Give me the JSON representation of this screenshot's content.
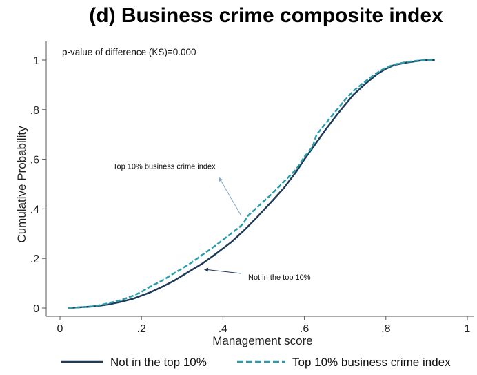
{
  "chart_data": {
    "type": "line",
    "title": "(d) Business crime composite index",
    "xlabel": "Management score",
    "ylabel": "Cumulative Probability",
    "xlim": [
      0,
      1
    ],
    "ylim": [
      0,
      1
    ],
    "xticks": [
      0,
      0.2,
      0.4,
      0.6,
      0.8,
      1
    ],
    "xtick_labels": [
      "0",
      ".2",
      ".4",
      ".6",
      ".8",
      "1"
    ],
    "yticks": [
      0,
      0.2,
      0.4,
      0.6,
      0.8,
      1
    ],
    "ytick_labels": [
      "0",
      ".2",
      ".4",
      ".6",
      ".8",
      "1"
    ],
    "grid": false,
    "legend_position": "bottom",
    "annotation_text": "p-value of difference (KS)=0.000",
    "series": [
      {
        "name": "Not in the top 10%",
        "color": "#1f3b57",
        "style": "solid",
        "x": [
          0.02,
          0.05,
          0.08,
          0.1,
          0.12,
          0.15,
          0.18,
          0.2,
          0.22,
          0.25,
          0.28,
          0.3,
          0.32,
          0.35,
          0.38,
          0.4,
          0.42,
          0.45,
          0.48,
          0.5,
          0.52,
          0.55,
          0.58,
          0.6,
          0.62,
          0.65,
          0.68,
          0.7,
          0.72,
          0.75,
          0.78,
          0.8,
          0.82,
          0.85,
          0.88,
          0.9,
          0.92
        ],
        "y": [
          0.0,
          0.003,
          0.006,
          0.01,
          0.015,
          0.025,
          0.038,
          0.05,
          0.062,
          0.085,
          0.11,
          0.13,
          0.15,
          0.18,
          0.215,
          0.24,
          0.265,
          0.31,
          0.36,
          0.395,
          0.43,
          0.485,
          0.55,
          0.6,
          0.645,
          0.715,
          0.78,
          0.82,
          0.86,
          0.905,
          0.945,
          0.965,
          0.98,
          0.99,
          0.997,
          1.0,
          1.0
        ]
      },
      {
        "name": "Top 10% business crime index",
        "color": "#2a9dab",
        "style": "dashed",
        "x": [
          0.02,
          0.05,
          0.08,
          0.1,
          0.12,
          0.15,
          0.18,
          0.2,
          0.22,
          0.25,
          0.28,
          0.3,
          0.32,
          0.35,
          0.38,
          0.4,
          0.42,
          0.44,
          0.45,
          0.46,
          0.48,
          0.5,
          0.52,
          0.55,
          0.58,
          0.6,
          0.62,
          0.63,
          0.65,
          0.68,
          0.7,
          0.72,
          0.75,
          0.78,
          0.8,
          0.82,
          0.85,
          0.88,
          0.9,
          0.92
        ],
        "y": [
          0.0,
          0.003,
          0.007,
          0.012,
          0.02,
          0.032,
          0.05,
          0.065,
          0.085,
          0.11,
          0.14,
          0.16,
          0.18,
          0.215,
          0.25,
          0.275,
          0.3,
          0.325,
          0.34,
          0.37,
          0.4,
          0.43,
          0.46,
          0.51,
          0.56,
          0.61,
          0.65,
          0.7,
          0.74,
          0.8,
          0.84,
          0.875,
          0.915,
          0.95,
          0.97,
          0.982,
          0.992,
          0.998,
          1.0,
          1.0
        ]
      }
    ],
    "annotations": [
      {
        "text": "Top 10% business crime index",
        "points_to": [
          0.455,
          0.35
        ],
        "label_at": [
          0.42,
          0.55
        ]
      },
      {
        "text": "Not in the top 10%",
        "points_to": [
          0.37,
          0.15
        ],
        "label_at": [
          0.47,
          0.13
        ]
      }
    ]
  }
}
